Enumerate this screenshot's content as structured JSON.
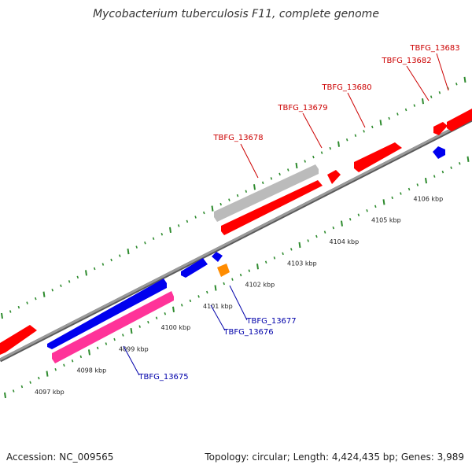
{
  "title": "Mycobacterium tuberculosis F11, complete genome",
  "footer": {
    "accession": "Accession: NC_009565",
    "topology": "Topology: circular; Length: 4,424,435 bp; Genes: 3,989"
  },
  "colors": {
    "backbone": "#8a8a8a",
    "tick": "#2e8b2e",
    "forward_gene": "#ff0000",
    "reverse_gene": "#0000ee",
    "pseudo_gene": "#bbbbbb",
    "pink_feature": "#ff3399",
    "orange_feature": "#ff8c00",
    "forward_label": "#cc0000",
    "reverse_label": "#0000aa"
  },
  "scale": {
    "ticks": [
      {
        "label": "4097 kbp"
      },
      {
        "label": "4098 kbp"
      },
      {
        "label": "4099 kbp"
      },
      {
        "label": "4100 kbp"
      },
      {
        "label": "4101 kbp"
      },
      {
        "label": "4102 kbp"
      },
      {
        "label": "4103 kbp"
      },
      {
        "label": "4104 kbp"
      },
      {
        "label": "4105 kbp"
      },
      {
        "label": "4106 kbp"
      }
    ]
  },
  "labels": {
    "forward": [
      {
        "text": "TBFG_13678"
      },
      {
        "text": "TBFG_13679"
      },
      {
        "text": "TBFG_13680"
      },
      {
        "text": "TBFG_13682"
      },
      {
        "text": "TBFG_13683"
      }
    ],
    "reverse": [
      {
        "text": "TBFG_13675"
      },
      {
        "text": "TBFG_13676"
      },
      {
        "text": "TBFG_13677"
      }
    ]
  }
}
